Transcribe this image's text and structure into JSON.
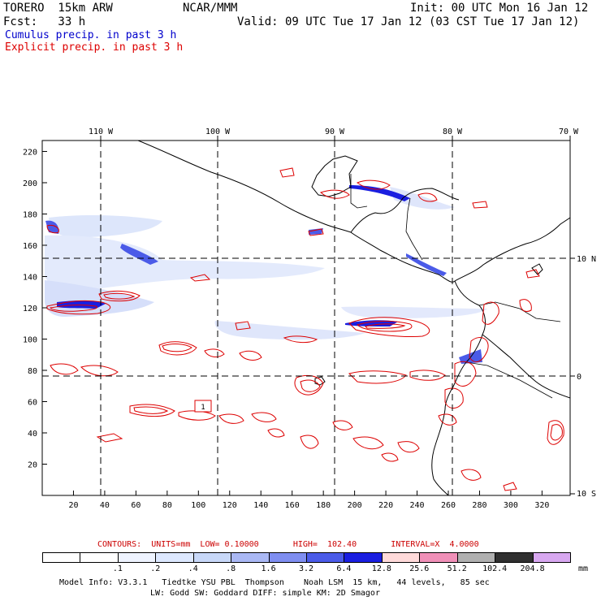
{
  "header": {
    "model": "TORERO  15km ARW",
    "org": "NCAR/MMM",
    "init": "Init: 00 UTC Mon 16 Jan 12",
    "fcst": "Fcst:   33 h",
    "valid": "Valid: 09 UTC Tue 17 Jan 12 (03 CST Tue 17 Jan 12)",
    "field1": "Cumulus precip. in past 3 h",
    "field2": "Explicit precip. in past 3 h",
    "field1_color": "#0000cc",
    "field2_color": "#dd0000"
  },
  "map": {
    "lon_labels": [
      "110 W",
      "100 W",
      "90 W",
      "80 W",
      "70 W"
    ],
    "lat_labels": [
      "10 N",
      "0",
      "10 S"
    ],
    "x_ticks": [
      "20",
      "40",
      "60",
      "80",
      "100",
      "120",
      "140",
      "160",
      "180",
      "200",
      "220",
      "240",
      "260",
      "280",
      "300",
      "320"
    ],
    "y_ticks": [
      "220",
      "200",
      "180",
      "160",
      "140",
      "120",
      "100",
      "80",
      "60",
      "40",
      "20"
    ],
    "contour_label": "1"
  },
  "legend": {
    "contours": "CONTOURS:  UNITS=mm  LOW= 0.10000       HIGH=  102.40       INTERVAL=X  4.0000",
    "levels": [
      ".1",
      ".2",
      ".4",
      ".8",
      "1.6",
      "3.2",
      "6.4",
      "12.8",
      "25.6",
      "51.2",
      "102.4",
      "204.8"
    ],
    "unit": "mm",
    "colors": [
      "#ffffff",
      "#ffffff",
      "#eef3ff",
      "#dde8ff",
      "#c8d8f8",
      "#aab8f4",
      "#7f8ef0",
      "#4b5be8",
      "#1a1ee0",
      "#ffdada",
      "#f090b8",
      "#b0b0b0",
      "#303030",
      "#d8a8f0"
    ]
  },
  "info": {
    "line1": "Model Info: V3.3.1   Tiedtke YSU PBL  Thompson    Noah LSM  15 km,   44 levels,   85 sec",
    "line2": "LW: Godd SW: Goddard DIFF: simple KM: 2D Smagor"
  }
}
